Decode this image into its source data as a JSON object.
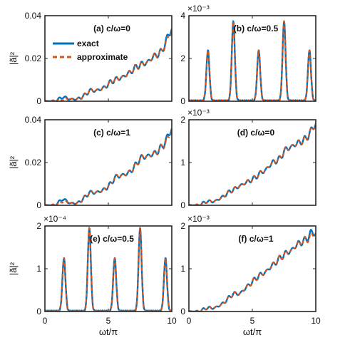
{
  "colors": {
    "exact": "#0072BD",
    "approximate": "#D95319"
  },
  "legend": [
    {
      "label": "exact",
      "style": "solid"
    },
    {
      "label": "approximate",
      "style": "dashed"
    }
  ],
  "axis_labels": {
    "x": "ωt/π",
    "y": "|ã|²"
  },
  "chart_data": [
    {
      "type": "line",
      "id": "a",
      "label": "(a) c/ω=0",
      "xlim": [
        0,
        10
      ],
      "ylim": [
        0,
        0.04
      ],
      "yticks": [
        "0",
        "0.02",
        "0.04"
      ],
      "xticks": [],
      "exponent": "",
      "shape": "staircase",
      "ylabel": "|ã|²",
      "xlabel": "",
      "legend": true,
      "series": [
        {
          "name": "exact",
          "x": [
            0,
            0.8,
            1.4,
            2.0,
            2.6,
            3.2,
            3.5,
            4.0,
            4.6,
            5.2,
            5.5,
            6.0,
            6.6,
            7.2,
            7.5,
            8.0,
            8.6,
            9.2,
            9.6,
            10
          ],
          "y": [
            0,
            0.0,
            0.002,
            0.001,
            0.001,
            0.003,
            0.005,
            0.005,
            0.006,
            0.009,
            0.01,
            0.011,
            0.013,
            0.016,
            0.017,
            0.018,
            0.021,
            0.023,
            0.029,
            0.034
          ]
        },
        {
          "name": "approximate",
          "x": [
            0,
            0.8,
            1.4,
            2.0,
            2.6,
            3.2,
            3.5,
            4.0,
            4.6,
            5.2,
            5.5,
            6.0,
            6.6,
            7.2,
            7.5,
            8.0,
            8.6,
            9.2,
            9.6,
            10
          ],
          "y": [
            0,
            0.0,
            0.001,
            0.001,
            0.001,
            0.003,
            0.005,
            0.005,
            0.006,
            0.009,
            0.01,
            0.011,
            0.013,
            0.016,
            0.017,
            0.018,
            0.021,
            0.023,
            0.028,
            0.033
          ]
        }
      ]
    },
    {
      "type": "line",
      "id": "b",
      "label": "(b) c/ω=0.5",
      "xlim": [
        0,
        10
      ],
      "ylim": [
        0,
        0.004
      ],
      "yticks": [
        "0",
        "2",
        "4"
      ],
      "xticks": [],
      "exponent": "×10⁻³",
      "shape": "peaks",
      "ylabel": "",
      "xlabel": "",
      "legend": false,
      "series": [
        {
          "name": "exact",
          "x": [
            1.5,
            3.5,
            5.5,
            7.5,
            9.5
          ],
          "y": [
            0.00235,
            0.0037,
            0.00235,
            0.0037,
            0.00235
          ]
        },
        {
          "name": "approximate",
          "x": [
            1.5,
            3.5,
            5.5,
            7.5,
            9.5
          ],
          "y": [
            0.00235,
            0.0037,
            0.00235,
            0.0037,
            0.00235
          ]
        }
      ]
    },
    {
      "type": "line",
      "id": "c",
      "label": "(c) c/ω=1",
      "xlim": [
        0,
        10
      ],
      "ylim": [
        0,
        0.04
      ],
      "yticks": [
        "0",
        "0.02",
        "0.04"
      ],
      "xticks": [],
      "exponent": "",
      "shape": "staircase",
      "ylabel": "|ã|²",
      "xlabel": "",
      "legend": false,
      "series": [
        {
          "name": "exact",
          "x": [
            0,
            0.8,
            1.4,
            2.0,
            2.6,
            3.2,
            3.5,
            4.0,
            4.6,
            5.2,
            5.5,
            6.0,
            6.6,
            7.2,
            7.5,
            8.0,
            8.6,
            9.2,
            9.6,
            10
          ],
          "y": [
            0,
            0.0,
            0.003,
            0.001,
            0.001,
            0.004,
            0.006,
            0.006,
            0.007,
            0.01,
            0.013,
            0.014,
            0.015,
            0.019,
            0.022,
            0.023,
            0.024,
            0.027,
            0.031,
            0.036
          ]
        },
        {
          "name": "approximate",
          "x": [
            0,
            0.8,
            1.4,
            2.0,
            2.6,
            3.2,
            3.5,
            4.0,
            4.6,
            5.2,
            5.5,
            6.0,
            6.6,
            7.2,
            7.5,
            8.0,
            8.6,
            9.2,
            9.6,
            10
          ],
          "y": [
            0,
            0.0,
            0.002,
            0.001,
            0.001,
            0.004,
            0.006,
            0.006,
            0.007,
            0.01,
            0.013,
            0.014,
            0.015,
            0.019,
            0.022,
            0.023,
            0.024,
            0.027,
            0.03,
            0.035
          ]
        }
      ]
    },
    {
      "type": "line",
      "id": "d",
      "label": "(d) c/ω=0",
      "xlim": [
        0,
        10
      ],
      "ylim": [
        0,
        0.0022
      ],
      "yticks": [
        "0",
        "1",
        "2"
      ],
      "xticks": [],
      "exponent": "×10⁻³",
      "shape": "staircase",
      "ylabel": "",
      "xlabel": "",
      "legend": false,
      "series": [
        {
          "name": "exact",
          "x": [
            0,
            0.8,
            1.4,
            2.0,
            2.6,
            3.2,
            3.5,
            4.0,
            4.6,
            5.2,
            5.5,
            6.0,
            6.6,
            7.2,
            7.5,
            8.0,
            8.6,
            9.2,
            9.6,
            10
          ],
          "y": [
            0,
            0.0,
            0.0001,
            0.0001,
            0.0002,
            0.00035,
            0.0004,
            0.0005,
            0.0006,
            0.0007,
            0.0008,
            0.0009,
            0.0011,
            0.0012,
            0.0014,
            0.0015,
            0.0016,
            0.0017,
            0.0019,
            0.0021
          ]
        },
        {
          "name": "approximate",
          "x": [
            0,
            0.8,
            1.4,
            2.0,
            2.6,
            3.2,
            3.5,
            4.0,
            4.6,
            5.2,
            5.5,
            6.0,
            6.6,
            7.2,
            7.5,
            8.0,
            8.6,
            9.2,
            9.6,
            10
          ],
          "y": [
            0,
            0.0,
            0.0001,
            0.0001,
            0.0002,
            0.00035,
            0.0004,
            0.0005,
            0.0006,
            0.0007,
            0.0008,
            0.0009,
            0.0011,
            0.0012,
            0.0014,
            0.0015,
            0.0016,
            0.0017,
            0.0019,
            0.0021
          ]
        }
      ]
    },
    {
      "type": "line",
      "id": "e",
      "label": "(e) c/ω=0.5",
      "xlim": [
        0,
        10
      ],
      "ylim": [
        0,
        0.00024
      ],
      "yticks": [
        "0",
        "1",
        "2"
      ],
      "xticks": [
        "0",
        "5",
        "10"
      ],
      "exponent": "×10⁻⁴",
      "shape": "peaks",
      "ylabel": "|ã|²",
      "xlabel": "ωt/π",
      "legend": false,
      "series": [
        {
          "name": "exact",
          "x": [
            1.5,
            3.5,
            5.5,
            7.5,
            9.5
          ],
          "y": [
            0.000148,
            0.000232,
            0.000148,
            0.000232,
            0.000148
          ]
        },
        {
          "name": "approximate",
          "x": [
            1.5,
            3.5,
            5.5,
            7.5,
            9.5
          ],
          "y": [
            0.000148,
            0.000232,
            0.000148,
            0.000232,
            0.000148
          ]
        }
      ]
    },
    {
      "type": "line",
      "id": "f",
      "label": "(f) c/ω=1",
      "xlim": [
        0,
        10
      ],
      "ylim": [
        0,
        0.0024
      ],
      "yticks": [
        "0",
        "1",
        "2"
      ],
      "xticks": [
        "0",
        "5",
        "10"
      ],
      "exponent": "×10⁻³",
      "shape": "staircase",
      "ylabel": "",
      "xlabel": "ωt/π",
      "legend": false,
      "series": [
        {
          "name": "exact",
          "x": [
            0,
            0.8,
            1.4,
            2.0,
            2.6,
            3.2,
            3.5,
            4.0,
            4.6,
            5.2,
            5.5,
            6.0,
            6.6,
            7.2,
            7.5,
            8.0,
            8.6,
            9.2,
            9.6,
            10
          ],
          "y": [
            0,
            0.0,
            0.0001,
            0.0001,
            0.0002,
            0.0004,
            0.0005,
            0.0005,
            0.0007,
            0.0009,
            0.001,
            0.0011,
            0.0013,
            0.0015,
            0.0016,
            0.0017,
            0.0019,
            0.002,
            0.0022,
            0.0022
          ]
        },
        {
          "name": "approximate",
          "x": [
            0,
            0.8,
            1.4,
            2.0,
            2.6,
            3.2,
            3.5,
            4.0,
            4.6,
            5.2,
            5.5,
            6.0,
            6.6,
            7.2,
            7.5,
            8.0,
            8.6,
            9.2,
            9.6,
            10
          ],
          "y": [
            0,
            0.0,
            0.0001,
            0.0001,
            0.0002,
            0.0004,
            0.0005,
            0.0005,
            0.0007,
            0.0009,
            0.001,
            0.0011,
            0.0013,
            0.0015,
            0.0016,
            0.0017,
            0.0019,
            0.002,
            0.0021,
            0.0022
          ]
        }
      ]
    }
  ]
}
